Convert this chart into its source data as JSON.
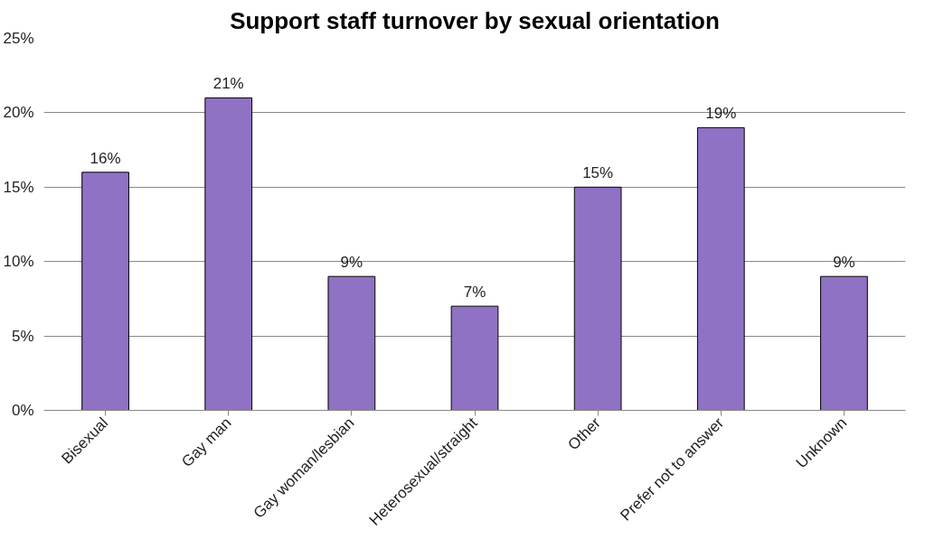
{
  "chart_data": {
    "type": "bar",
    "title": "Support staff turnover by sexual orientation",
    "categories": [
      "Bisexual",
      "Gay man",
      "Gay woman/lesbian",
      "Heterosexual/straight",
      "Other",
      "Prefer not to answer",
      "Unknown"
    ],
    "values": [
      16,
      21,
      9,
      7,
      15,
      19,
      9
    ],
    "value_labels": [
      "16%",
      "21%",
      "9%",
      "7%",
      "15%",
      "19%",
      "9%"
    ],
    "color": "#8f72c4",
    "ylim": [
      0,
      25
    ],
    "yticks": [
      {
        "value": 0,
        "label": "0%"
      },
      {
        "value": 5,
        "label": "5%"
      },
      {
        "value": 10,
        "label": "10%"
      },
      {
        "value": 15,
        "label": "15%"
      },
      {
        "value": 20,
        "label": "20%"
      },
      {
        "value": 25,
        "label": "25%"
      }
    ],
    "grid": "y"
  }
}
